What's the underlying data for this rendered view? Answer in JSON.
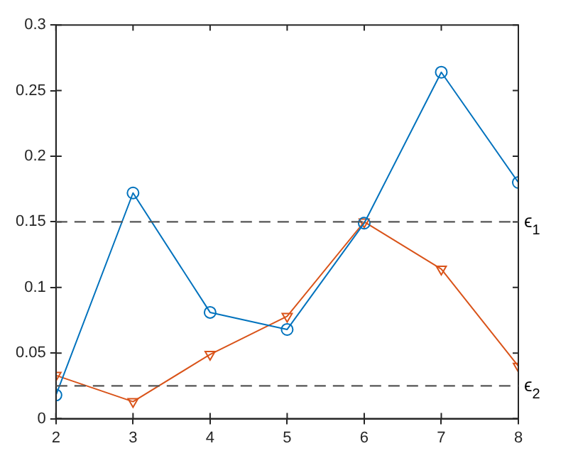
{
  "chart_data": {
    "type": "line",
    "x": [
      2,
      3,
      4,
      5,
      6,
      7,
      8
    ],
    "series": [
      {
        "color": "#0072bd",
        "marker": "circle",
        "values": [
          0.018,
          0.172,
          0.081,
          0.068,
          0.149,
          0.264,
          0.18
        ]
      },
      {
        "color": "#d95319",
        "marker": "triangle",
        "values": [
          0.033,
          0.013,
          0.049,
          0.078,
          0.15,
          0.114,
          0.04
        ]
      }
    ],
    "xlim": [
      2,
      8
    ],
    "xticks": [
      2,
      3,
      4,
      5,
      6,
      7,
      8
    ],
    "ylim": [
      0,
      0.3
    ],
    "yticks": [
      0,
      0.05,
      0.1,
      0.15,
      0.2,
      0.25,
      0.3
    ],
    "grid": false,
    "legend": false,
    "line_style": "solid",
    "ref_lines": [
      {
        "axis": "y",
        "value": 0.15,
        "label": "ϵ$_{1}$",
        "color": "#555555",
        "line_style": "dashed"
      },
      {
        "axis": "y",
        "value": 0.025,
        "label": "ϵ$_{2}$",
        "color": "#555555",
        "line_style": "dashed"
      }
    ]
  }
}
